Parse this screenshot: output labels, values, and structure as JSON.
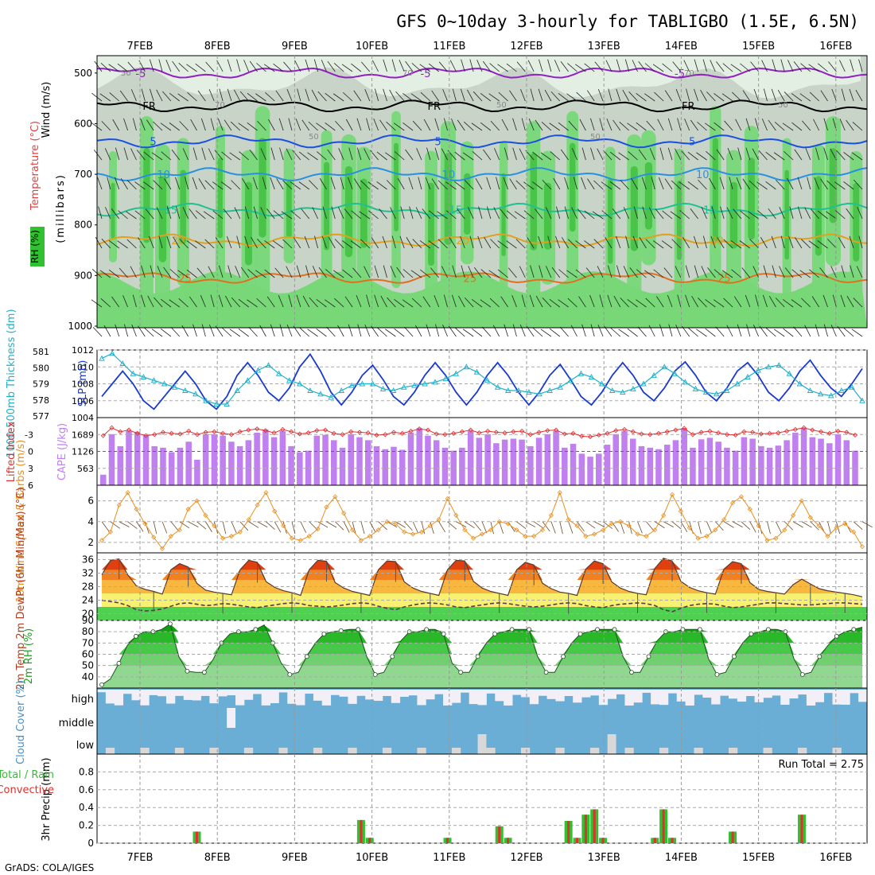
{
  "title": "GFS 0~10day 3-hourly for TABLIGBO (1.5E, 6.5N)",
  "footer": "GrADS: COLA/IGES",
  "dates": [
    "7FEB",
    "8FEB",
    "9FEB",
    "10FEB",
    "11FEB",
    "12FEB",
    "13FEB",
    "14FEB",
    "15FEB",
    "16FEB"
  ],
  "colors": {
    "rh_dark": "#3cbf3c",
    "rh_mid": "#78d878",
    "rh_light": "#c8d4c8",
    "rh_pale": "#e4efe4",
    "slp": "#1a3ad0",
    "thickness": "#20b0cc",
    "lifted": "#e03030",
    "cape": "#c080f0",
    "wind10m": "#e89020",
    "cloud": "#6aaed6",
    "cloud_clear": "#f2f0f6",
    "precip_total": "#30c030",
    "precip_conv": "#e03030"
  },
  "chart_data": [
    {
      "type": "heatmap",
      "panel": "upper-air",
      "ylabel": "(millibars)",
      "labels": [
        "Wind (m/s)",
        "Temperature (°C)",
        "RH (%)"
      ],
      "y_ticks": [
        "500",
        "600",
        "700",
        "800",
        "900",
        "1000"
      ],
      "ylim": [
        450,
        1000
      ],
      "isotherms": [
        {
          "label": "-5",
          "level": 500,
          "color": "#9020c0"
        },
        {
          "label": "FR",
          "level": 565,
          "color": "#000000"
        },
        {
          "label": "5",
          "level": 635,
          "color": "#1a50e0"
        },
        {
          "label": "10",
          "level": 700,
          "color": "#2890e0"
        },
        {
          "label": "15",
          "level": 770,
          "color": "#20c090"
        },
        {
          "label": "20",
          "level": 830,
          "color": "#e0a020"
        },
        {
          "label": "25",
          "level": 905,
          "color": "#e07020"
        }
      ],
      "contour_labels": [
        "50",
        "70",
        "50",
        "70",
        "50",
        "50",
        "70",
        "50"
      ]
    },
    {
      "type": "line",
      "panel": "thickness-slp",
      "ylabel_left": "1000-500mb Thickness (dm)",
      "ylabel_right": "SLP (mb)",
      "left_ticks": [
        "581",
        "580",
        "579",
        "578",
        "577"
      ],
      "left_range": [
        577,
        581
      ],
      "right_ticks": [
        "1012",
        "1010",
        "1008",
        "1006",
        "1004"
      ],
      "right_range": [
        1004,
        1012
      ],
      "series": [
        {
          "name": "SLP (mb)",
          "axis": "right",
          "values": [
            1006.5,
            1008,
            1009.5,
            1008,
            1006,
            1005,
            1006.5,
            1008,
            1009.5,
            1008,
            1006,
            1005,
            1006.5,
            1009,
            1010.5,
            1009,
            1007,
            1006,
            1007.5,
            1010,
            1011.5,
            1009.5,
            1007,
            1005.5,
            1007,
            1009,
            1010.2,
            1008.5,
            1006.5,
            1005.5,
            1007,
            1009,
            1010.5,
            1009,
            1007,
            1005.5,
            1007,
            1009,
            1010.5,
            1009,
            1007,
            1005.5,
            1007,
            1009,
            1010.3,
            1008.5,
            1006.5,
            1005.5,
            1007,
            1009,
            1010.5,
            1009,
            1007,
            1006,
            1007.5,
            1009.5,
            1010.6,
            1009,
            1007,
            1006,
            1007.5,
            1009.5,
            1010.5,
            1009,
            1007,
            1006,
            1007.5,
            1009.5,
            1010.8,
            1009,
            1007.5,
            1006.5,
            1008,
            1009.8
          ]
        },
        {
          "name": "Thickness (dm)",
          "axis": "left",
          "values": [
            580.5,
            580.8,
            580.2,
            579.6,
            579.4,
            579.2,
            579.0,
            578.8,
            578.6,
            578.4,
            578.0,
            577.8,
            577.8,
            578.6,
            579.2,
            579.8,
            580.1,
            579.6,
            579.2,
            579.0,
            578.6,
            578.4,
            578.2,
            578.6,
            578.9,
            579.0,
            579.0,
            578.7,
            578.6,
            578.8,
            578.9,
            579.0,
            579.1,
            579.3,
            579.6,
            580.0,
            579.7,
            579.2,
            578.8,
            578.6,
            578.6,
            578.5,
            578.4,
            578.6,
            578.8,
            579.2,
            579.6,
            579.4,
            579.0,
            578.6,
            578.5,
            578.7,
            579.0,
            579.5,
            580.0,
            579.6,
            579.1,
            578.7,
            578.5,
            578.4,
            578.6,
            579.0,
            579.4,
            579.8,
            580.0,
            580.1,
            579.6,
            579.0,
            578.6,
            578.4,
            578.3,
            578.6,
            578.8,
            578.0
          ]
        }
      ]
    },
    {
      "type": "bar",
      "panel": "cape-lifted-index",
      "ylabel_left": "Lifted Index",
      "ylabel_right": "CAPE (J/kg)",
      "left_ticks": [
        "-3",
        "0",
        "3",
        "6"
      ],
      "left_range": [
        -6,
        6
      ],
      "right_ticks": [
        "1689",
        "1126",
        "563"
      ],
      "right_range": [
        0,
        2252
      ],
      "series": [
        {
          "name": "CAPE (J/kg)",
          "axis": "right",
          "values": [
            350,
            1700,
            1300,
            1800,
            1780,
            1650,
            1300,
            1250,
            1100,
            1250,
            1450,
            850,
            1700,
            1700,
            1650,
            1450,
            1300,
            1500,
            1750,
            1850,
            1600,
            1800,
            1300,
            1100,
            1150,
            1650,
            1680,
            1500,
            1250,
            1700,
            1600,
            1500,
            1300,
            1200,
            1280,
            1180,
            1750,
            1900,
            1650,
            1500,
            1250,
            1150,
            1250,
            1800,
            1580,
            1700,
            1400,
            1520,
            1550,
            1520,
            1300,
            1580,
            1700,
            1800,
            1250,
            1380,
            1050,
            950,
            1050,
            1350,
            1700,
            1800,
            1550,
            1300,
            1250,
            1200,
            1350,
            1500,
            1900,
            1250,
            1530,
            1580,
            1450,
            1250,
            1150,
            1600,
            1550,
            1300,
            1250,
            1320,
            1500,
            1750,
            1900,
            1600,
            1550,
            1400,
            1700,
            1500,
            1150
          ]
        },
        {
          "name": "Lifted Index",
          "axis": "left",
          "values": [
            -2.8,
            -4.2,
            -3.5,
            -3.8,
            -3.2,
            -2.8,
            -3.0,
            -3.4,
            -3.2,
            -3.1,
            -3.6,
            -3.0,
            -3.4,
            -3.5,
            -3.2,
            -3.0,
            -3.5,
            -3.8,
            -4.0,
            -3.7,
            -3.3,
            -3.9,
            -3.5,
            -3.1,
            -3.3,
            -3.7,
            -3.8,
            -3.2,
            -3.0,
            -3.5,
            -3.4,
            -3.3,
            -2.9,
            -3.0,
            -3.4,
            -3.2,
            -3.6,
            -4.0,
            -3.8,
            -3.1,
            -3.0,
            -3.2,
            -3.5,
            -3.8,
            -3.3,
            -3.6,
            -3.4,
            -3.3,
            -3.5,
            -3.6,
            -3.0,
            -3.4,
            -3.7,
            -3.8,
            -3.1,
            -3.2,
            -2.7,
            -2.6,
            -2.9,
            -3.2,
            -3.7,
            -3.9,
            -3.5,
            -3.1,
            -3.0,
            -3.2,
            -3.5,
            -3.8,
            -4.1,
            -3.0,
            -3.4,
            -3.6,
            -3.3,
            -3.0,
            -2.9,
            -3.5,
            -3.4,
            -3.1,
            -3.2,
            -3.3,
            -3.6,
            -3.9,
            -4.2,
            -3.8,
            -3.5,
            -3.2,
            -3.6,
            -3.4,
            -2.9
          ]
        }
      ]
    },
    {
      "type": "line",
      "panel": "wind10m",
      "ylabel": "10m Wind Speed & Barbs (m/s)",
      "y_ticks": [
        "2",
        "4",
        "6"
      ],
      "ylim": [
        1,
        7.5
      ],
      "series": [
        {
          "name": "10m Wind Speed",
          "values": [
            2.2,
            3.0,
            5.6,
            6.8,
            5.2,
            3.8,
            2.5,
            1.4,
            2.6,
            3.2,
            5.2,
            6.0,
            4.6,
            3.6,
            2.4,
            2.6,
            3.0,
            4.2,
            5.6,
            6.8,
            5.0,
            3.6,
            2.4,
            2.2,
            2.6,
            3.3,
            5.4,
            6.4,
            4.8,
            3.2,
            2.2,
            2.6,
            3.2,
            4.0,
            3.8,
            3.0,
            2.8,
            3.0,
            3.6,
            4.2,
            6.2,
            4.6,
            3.2,
            2.4,
            2.8,
            3.2,
            4.0,
            3.8,
            3.2,
            2.6,
            2.6,
            3.2,
            4.6,
            6.8,
            4.2,
            3.6,
            2.6,
            2.8,
            3.2,
            3.8,
            4.0,
            3.6,
            2.8,
            2.6,
            3.2,
            4.6,
            6.6,
            5.0,
            3.4,
            2.4,
            2.6,
            3.2,
            4.2,
            5.8,
            6.4,
            5.2,
            3.6,
            2.2,
            2.4,
            3.2,
            4.6,
            6.0,
            4.4,
            3.6,
            2.6,
            3.4,
            3.8,
            3.0,
            1.6
          ]
        }
      ]
    },
    {
      "type": "area",
      "panel": "temp2m",
      "ylabel": "2m Temp 2m DewPt (6hr Min/Max) (°C)",
      "y_ticks": [
        "20",
        "24",
        "28",
        "32",
        "36"
      ],
      "ylim": [
        18,
        38
      ],
      "series": [
        {
          "name": "2m Temp",
          "values": [
            31.5,
            35.8,
            36.2,
            31.5,
            28.2,
            27.2,
            26.6,
            25.8,
            33.0,
            34.8,
            33.8,
            29.0,
            27.0,
            26.4,
            26.0,
            25.6,
            33.0,
            35.8,
            35.2,
            29.5,
            27.8,
            26.8,
            26.2,
            25.4,
            33.0,
            35.8,
            35.5,
            29.2,
            27.6,
            26.6,
            26.0,
            25.4,
            33.0,
            35.6,
            35.4,
            29.4,
            27.6,
            26.6,
            26.0,
            25.4,
            33.0,
            35.8,
            35.6,
            29.6,
            27.6,
            26.6,
            26.0,
            25.4,
            33.0,
            35.2,
            34.4,
            29.0,
            27.4,
            26.4,
            26.0,
            25.4,
            33.2,
            35.6,
            34.8,
            29.4,
            27.6,
            26.6,
            26.0,
            25.6,
            33.4,
            36.4,
            35.6,
            29.6,
            27.8,
            26.8,
            26.2,
            25.8,
            33.2,
            35.4,
            34.8,
            29.2,
            27.2,
            26.6,
            26.2,
            25.8,
            28.6,
            30.2,
            28.8,
            27.4,
            26.8,
            26.4,
            26.0,
            25.6,
            25.0
          ]
        },
        {
          "name": "2m DewPt",
          "values": [
            24.0,
            23.6,
            23.2,
            22.4,
            21.2,
            20.8,
            21.0,
            21.4,
            22.2,
            23.0,
            23.2,
            22.8,
            22.4,
            22.6,
            23.0,
            22.8,
            22.4,
            22.0,
            21.8,
            22.2,
            22.6,
            23.0,
            23.2,
            23.0,
            22.4,
            22.2,
            22.0,
            22.2,
            22.6,
            23.0,
            23.2,
            23.0,
            22.2,
            21.6,
            21.2,
            22.0,
            22.6,
            23.0,
            23.2,
            23.0,
            22.6,
            22.0,
            21.8,
            22.2,
            22.6,
            23.0,
            23.2,
            23.0,
            22.6,
            22.2,
            22.0,
            22.2,
            22.6,
            23.0,
            23.2,
            23.0,
            22.4,
            22.0,
            21.8,
            22.4,
            22.8,
            23.0,
            23.2,
            23.0,
            22.4,
            21.2,
            20.6,
            21.6,
            22.4,
            22.8,
            23.0,
            22.8,
            22.2,
            21.8,
            22.0,
            22.4,
            22.8,
            23.2,
            23.2,
            23.0,
            22.8,
            22.6,
            22.6,
            22.8,
            23.0,
            23.2,
            23.2,
            23.0,
            22.8
          ]
        }
      ]
    },
    {
      "type": "area",
      "panel": "rh2m",
      "ylabel": "2m RH (%)",
      "y_ticks": [
        "40",
        "50",
        "60",
        "70",
        "80",
        "90"
      ],
      "ylim": [
        30,
        90
      ],
      "series": [
        {
          "name": "2m RH",
          "values": [
            33,
            38,
            52,
            68,
            76,
            80,
            80,
            82,
            87,
            58,
            45,
            44,
            44,
            55,
            70,
            78,
            80,
            80,
            82,
            86,
            70,
            52,
            42,
            44,
            58,
            70,
            78,
            80,
            81,
            82,
            82,
            58,
            42,
            44,
            58,
            72,
            80,
            80,
            82,
            82,
            78,
            52,
            44,
            44,
            58,
            70,
            78,
            80,
            82,
            82,
            82,
            58,
            44,
            44,
            58,
            70,
            78,
            80,
            82,
            82,
            82,
            58,
            44,
            44,
            58,
            72,
            80,
            80,
            82,
            82,
            82,
            56,
            42,
            44,
            58,
            70,
            78,
            80,
            82,
            82,
            80,
            56,
            42,
            44,
            58,
            68,
            76,
            80,
            82,
            84
          ]
        }
      ]
    },
    {
      "type": "area",
      "panel": "cloud-cover",
      "ylabel": "Cloud Cover (%)",
      "levels": [
        "high",
        "middle",
        "low"
      ]
    },
    {
      "type": "bar",
      "panel": "precip",
      "ylabel": "3hr Precip (mm)",
      "legend": [
        "Total / Rain",
        "Convective"
      ],
      "y_ticks": [
        "0",
        "0.2",
        "0.4",
        "0.6",
        "0.8"
      ],
      "ylim": [
        0,
        1.0
      ],
      "run_total": "Run Total = 2.75",
      "events": [
        {
          "i": 11,
          "total": 0.13
        },
        {
          "i": 30,
          "total": 0.26
        },
        {
          "i": 31,
          "total": 0.06
        },
        {
          "i": 40,
          "total": 0.06
        },
        {
          "i": 46,
          "total": 0.19
        },
        {
          "i": 47,
          "total": 0.06
        },
        {
          "i": 54,
          "total": 0.25
        },
        {
          "i": 55,
          "total": 0.06
        },
        {
          "i": 56,
          "total": 0.32
        },
        {
          "i": 57,
          "total": 0.38
        },
        {
          "i": 58,
          "total": 0.06
        },
        {
          "i": 64,
          "total": 0.06
        },
        {
          "i": 65,
          "total": 0.38
        },
        {
          "i": 66,
          "total": 0.06
        },
        {
          "i": 73,
          "total": 0.13
        },
        {
          "i": 81,
          "total": 0.32
        }
      ]
    }
  ]
}
